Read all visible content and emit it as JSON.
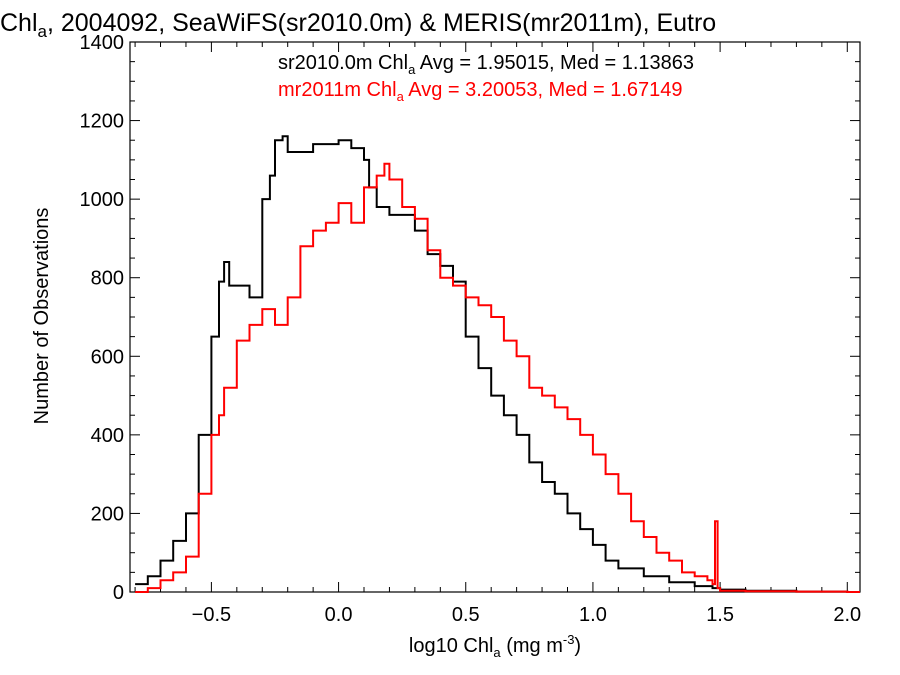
{
  "chart_data": {
    "type": "line",
    "title": {
      "pre": "Chl",
      "sub": "a",
      "post": ", 2004092, SeaWiFS(sr2010.0m) & MERIS(mr2011m), Eutro"
    },
    "xlabel": {
      "pre": "log10 Chl",
      "sub": "a",
      "mid": " (mg m",
      "sup": "-3",
      "post": ")"
    },
    "ylabel": "Number of Observations",
    "xlim": [
      -0.82,
      2.05
    ],
    "ylim": [
      0,
      1400
    ],
    "xticks": [
      -0.5,
      0.0,
      0.5,
      1.0,
      1.5,
      2.0
    ],
    "xtick_labels": [
      "−0.5",
      "0.0",
      "0.5",
      "1.0",
      "1.5",
      "2.0"
    ],
    "yticks": [
      0,
      200,
      400,
      600,
      800,
      1000,
      1200,
      1400
    ],
    "ytick_labels": [
      "0",
      "200",
      "400",
      "600",
      "800",
      "1000",
      "1200",
      "1400"
    ],
    "grid": false,
    "legend_placement": "top-right",
    "series": [
      {
        "color": "#000000",
        "label": {
          "pre": "sr2010.0m Chl",
          "sub": "a",
          "post": " Avg = 1.95015, Med = 1.13863"
        },
        "x": [
          -0.8,
          -0.75,
          -0.7,
          -0.65,
          -0.6,
          -0.55,
          -0.5,
          -0.47,
          -0.45,
          -0.43,
          -0.4,
          -0.35,
          -0.3,
          -0.27,
          -0.25,
          -0.22,
          -0.2,
          -0.15,
          -0.1,
          -0.05,
          0.0,
          0.05,
          0.1,
          0.12,
          0.15,
          0.2,
          0.25,
          0.3,
          0.35,
          0.4,
          0.45,
          0.5,
          0.55,
          0.6,
          0.65,
          0.7,
          0.75,
          0.8,
          0.85,
          0.9,
          0.95,
          1.0,
          1.05,
          1.1,
          1.2,
          1.3,
          1.4,
          1.47,
          1.5,
          1.6,
          1.8,
          2.0,
          2.05
        ],
        "y": [
          20,
          40,
          80,
          130,
          200,
          400,
          650,
          790,
          840,
          780,
          780,
          750,
          1000,
          1060,
          1150,
          1160,
          1120,
          1120,
          1140,
          1140,
          1150,
          1130,
          1100,
          1030,
          980,
          960,
          960,
          920,
          860,
          830,
          790,
          650,
          570,
          500,
          450,
          400,
          330,
          280,
          250,
          200,
          160,
          120,
          80,
          60,
          40,
          25,
          15,
          10,
          6,
          3,
          1,
          0,
          0
        ]
      },
      {
        "color": "#ff0000",
        "label": {
          "pre": "mr2011m Chl",
          "sub": "a",
          "post": " Avg = 3.20053, Med = 1.67149"
        },
        "x": [
          -0.8,
          -0.75,
          -0.7,
          -0.65,
          -0.6,
          -0.55,
          -0.5,
          -0.47,
          -0.45,
          -0.4,
          -0.35,
          -0.3,
          -0.25,
          -0.2,
          -0.15,
          -0.1,
          -0.05,
          0.0,
          0.05,
          0.1,
          0.15,
          0.18,
          0.2,
          0.25,
          0.3,
          0.35,
          0.4,
          0.45,
          0.5,
          0.55,
          0.6,
          0.65,
          0.7,
          0.75,
          0.8,
          0.85,
          0.9,
          0.95,
          1.0,
          1.05,
          1.1,
          1.15,
          1.2,
          1.25,
          1.3,
          1.35,
          1.4,
          1.45,
          1.47,
          1.48,
          1.49,
          1.5,
          1.6,
          1.8,
          2.0,
          2.05
        ],
        "y": [
          0,
          10,
          30,
          50,
          90,
          250,
          400,
          450,
          520,
          640,
          680,
          720,
          680,
          750,
          880,
          920,
          940,
          990,
          940,
          1030,
          1060,
          1090,
          1050,
          980,
          950,
          870,
          800,
          780,
          750,
          730,
          700,
          640,
          600,
          520,
          500,
          470,
          440,
          400,
          350,
          300,
          250,
          180,
          140,
          100,
          80,
          50,
          40,
          30,
          20,
          180,
          10,
          3,
          2,
          1,
          0,
          0
        ]
      }
    ]
  }
}
